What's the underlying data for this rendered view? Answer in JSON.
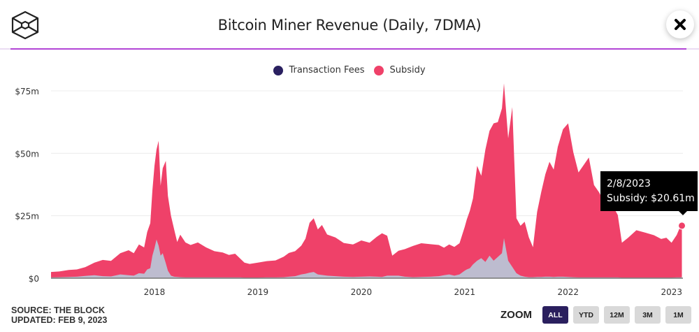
{
  "header": {
    "title": "Bitcoin Miner Revenue (Daily, 7DMA)",
    "close_label": "close"
  },
  "colors": {
    "accent": "#b245d6",
    "fees": "#2a2060",
    "fees_area": "#bdbccf",
    "subsidy": "#ef4169",
    "zoom_active": "#2a1f5e",
    "zoom_inactive": "#d9d9d9"
  },
  "legend": [
    {
      "label": "Transaction Fees",
      "color": "#2a2060"
    },
    {
      "label": "Subsidy",
      "color": "#ef4169"
    }
  ],
  "footer": {
    "source": "SOURCE: THE BLOCK",
    "updated": "UPDATED: FEB 9, 2023"
  },
  "zoom": {
    "label": "ZOOM",
    "buttons": [
      "ALL",
      "YTD",
      "12M",
      "3M",
      "1M"
    ],
    "active": "ALL"
  },
  "tooltip": {
    "date": "2/8/2023",
    "text": "Subsidy: $20.61m"
  },
  "chart_data": {
    "type": "area",
    "stacked": true,
    "title": "Bitcoin Miner Revenue (Daily, 7DMA)",
    "xlabel": "",
    "ylabel": "",
    "yticks": [
      "$0",
      "$25m",
      "$50m",
      "$75m"
    ],
    "ytick_values": [
      0,
      25,
      50,
      75
    ],
    "ylim": [
      0,
      75
    ],
    "xticks": [
      "2018",
      "2019",
      "2020",
      "2021",
      "2022",
      "2023"
    ],
    "xtick_values": [
      2018,
      2019,
      2020,
      2021,
      2022,
      2023
    ],
    "xlim": [
      2017.0,
      2023.11
    ],
    "grid": true,
    "legend_position": "top-center",
    "x": [
      2017.0,
      2017.08,
      2017.17,
      2017.25,
      2017.33,
      2017.42,
      2017.5,
      2017.58,
      2017.67,
      2017.75,
      2017.8,
      2017.85,
      2017.9,
      2017.93,
      2017.96,
      2017.98,
      2018.0,
      2018.02,
      2018.04,
      2018.06,
      2018.08,
      2018.11,
      2018.13,
      2018.16,
      2018.19,
      2018.22,
      2018.25,
      2018.3,
      2018.35,
      2018.42,
      2018.5,
      2018.58,
      2018.66,
      2018.72,
      2018.78,
      2018.83,
      2018.87,
      2018.92,
      2019.0,
      2019.08,
      2019.17,
      2019.25,
      2019.3,
      2019.36,
      2019.42,
      2019.46,
      2019.5,
      2019.54,
      2019.58,
      2019.62,
      2019.67,
      2019.75,
      2019.83,
      2019.92,
      2020.0,
      2020.08,
      2020.15,
      2020.2,
      2020.25,
      2020.3,
      2020.36,
      2020.42,
      2020.5,
      2020.58,
      2020.67,
      2020.75,
      2020.8,
      2020.85,
      2020.9,
      2020.95,
      2021.0,
      2021.02,
      2021.05,
      2021.08,
      2021.12,
      2021.16,
      2021.2,
      2021.24,
      2021.28,
      2021.32,
      2021.36,
      2021.38,
      2021.42,
      2021.46,
      2021.5,
      2021.54,
      2021.58,
      2021.62,
      2021.66,
      2021.7,
      2021.74,
      2021.78,
      2021.82,
      2021.86,
      2021.9,
      2021.95,
      2022.0,
      2022.05,
      2022.1,
      2022.15,
      2022.2,
      2022.25,
      2022.3,
      2022.35,
      2022.4,
      2022.44,
      2022.48,
      2022.52,
      2022.58,
      2022.66,
      2022.75,
      2022.83,
      2022.9,
      2022.95,
      2023.0,
      2023.05,
      2023.08,
      2023.1
    ],
    "series": [
      {
        "name": "Subsidy",
        "values": [
          2.2,
          2.3,
          2.8,
          2.9,
          3.5,
          5.0,
          6.5,
          6.2,
          8.5,
          10.0,
          9.0,
          11.5,
          10.5,
          15.0,
          18.0,
          26.0,
          33.0,
          36.0,
          42.0,
          28.0,
          34.0,
          41.0,
          30.0,
          24.0,
          19.0,
          14.0,
          17.0,
          14.0,
          13.0,
          14.0,
          12.0,
          10.5,
          10.0,
          9.0,
          9.5,
          7.5,
          6.0,
          5.5,
          6.0,
          6.5,
          6.8,
          8.2,
          9.5,
          10.0,
          11.5,
          14.0,
          20.0,
          21.5,
          18.0,
          20.0,
          16.5,
          15.5,
          13.5,
          13.0,
          14.5,
          13.5,
          16.0,
          17.5,
          16.0,
          8.0,
          10.0,
          11.0,
          12.5,
          13.5,
          13.0,
          12.5,
          11.0,
          12.0,
          11.5,
          12.5,
          17.5,
          20.0,
          23.0,
          26.5,
          38.0,
          33.0,
          45.0,
          50.0,
          55.0,
          54.0,
          58.0,
          62.0,
          49.0,
          64.0,
          22.0,
          20.0,
          22.0,
          16.0,
          12.0,
          26.0,
          34.0,
          41.0,
          46.0,
          43.0,
          52.0,
          59.0,
          61.5,
          50.0,
          42.0,
          45.0,
          48.0,
          37.0,
          34.0,
          30.0,
          31.0,
          28.0,
          25.0,
          14.0,
          16.0,
          19.0,
          18.0,
          17.0,
          15.5,
          16.0,
          14.0,
          17.0,
          20.0,
          20.61
        ]
      },
      {
        "name": "Transaction Fees",
        "values": [
          0.3,
          0.4,
          0.5,
          0.6,
          0.9,
          1.2,
          0.8,
          0.7,
          1.5,
          1.2,
          1.0,
          2.0,
          1.8,
          3.5,
          4.0,
          9.0,
          12.0,
          15.5,
          13.0,
          9.0,
          10.0,
          6.0,
          3.0,
          1.0,
          0.6,
          0.5,
          0.4,
          0.3,
          0.3,
          0.3,
          0.3,
          0.3,
          0.3,
          0.3,
          0.3,
          0.3,
          0.2,
          0.2,
          0.2,
          0.3,
          0.3,
          0.4,
          0.6,
          0.8,
          1.5,
          1.8,
          2.2,
          2.5,
          1.5,
          1.3,
          1.0,
          0.8,
          0.6,
          0.5,
          0.6,
          0.7,
          0.6,
          0.5,
          1.0,
          1.0,
          1.0,
          0.6,
          0.4,
          0.5,
          0.6,
          0.8,
          1.2,
          1.5,
          1.0,
          1.5,
          3.0,
          3.5,
          4.0,
          5.5,
          7.0,
          8.0,
          6.5,
          9.0,
          7.0,
          8.5,
          10.0,
          16.0,
          7.0,
          4.5,
          2.0,
          1.0,
          0.6,
          0.4,
          0.4,
          0.5,
          0.5,
          0.6,
          0.6,
          0.5,
          0.6,
          0.6,
          0.5,
          0.4,
          0.3,
          0.3,
          0.3,
          0.3,
          0.3,
          0.3,
          0.3,
          0.3,
          0.3,
          0.2,
          0.2,
          0.2,
          0.2,
          0.2,
          0.2,
          0.2,
          0.2,
          0.3,
          0.3,
          0.4
        ]
      }
    ],
    "highlighted_point": {
      "x": "2/8/2023",
      "series": "Subsidy",
      "value": 20.61
    }
  }
}
